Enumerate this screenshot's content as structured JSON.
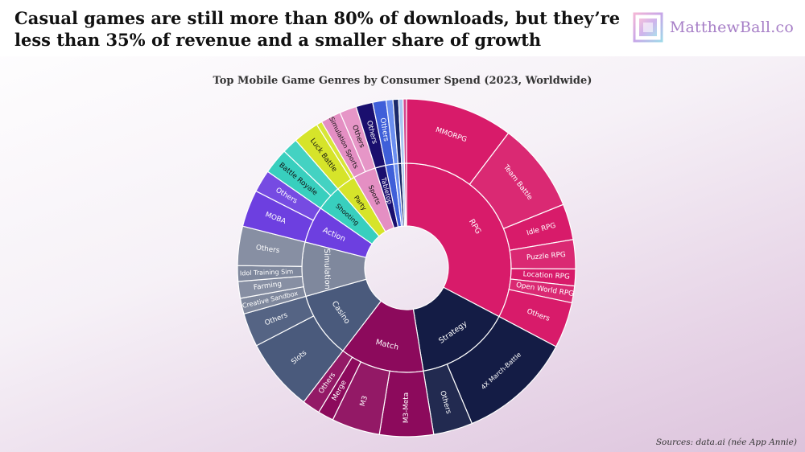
{
  "header": {
    "headline": "Casual games are still more than 80% of downloads, but they’re less than 35% of revenue and a smaller share of growth",
    "brand": "MatthewBall.co"
  },
  "footer": {
    "source": "Sources: data.ai (née App Annie)"
  },
  "chart_data": {
    "type": "sunburst",
    "title": "Top Mobile Game Genres by Consumer Spend (2023, Worldwide)",
    "unit": "approximate share of consumer spend (%)",
    "genres": [
      {
        "name": "RPG",
        "label": "RPG",
        "color": "#d81b6a",
        "children": [
          {
            "name": "MMORPG",
            "label": "MMORPG",
            "value": 9.6
          },
          {
            "name": "Team Battle",
            "label": "Team Battle",
            "value": 8.0
          },
          {
            "name": "Idle RPG",
            "label": "Idle RPG",
            "value": 3.2
          },
          {
            "name": "Puzzle RPG",
            "label": "Puzzle RPG",
            "value": 2.6
          },
          {
            "name": "Location RPG",
            "label": "Location RPG",
            "value": 1.5
          },
          {
            "name": "Open World RPG",
            "label": "Open World RPG",
            "value": 1.5
          },
          {
            "name": "Others",
            "label": "Others",
            "value": 4.1
          }
        ]
      },
      {
        "name": "Strategy",
        "label": "Strategy",
        "color": "#141c45",
        "children": [
          {
            "name": "4X March-Battle",
            "label": "4X March-Battle",
            "value": 10.2
          },
          {
            "name": "Others",
            "label": "Others",
            "value": 3.5
          }
        ]
      },
      {
        "name": "Match",
        "label": "Match",
        "color": "#8c0a5c",
        "children": [
          {
            "name": "M3-Meta",
            "label": "M3-Meta",
            "value": 4.8
          },
          {
            "name": "M3",
            "label": "M3",
            "value": 4.3
          },
          {
            "name": "Merge",
            "label": "Merge",
            "value": 1.4
          },
          {
            "name": "Others",
            "label": "Others",
            "value": 1.6
          }
        ]
      },
      {
        "name": "Casino",
        "label": "Casino",
        "color": "#4a5a7c",
        "children": [
          {
            "name": "Slots",
            "label": "Slots",
            "value": 6.5
          },
          {
            "name": "Others",
            "label": "Others",
            "value": 3.0
          }
        ]
      },
      {
        "name": "Simulation",
        "label": "Simulation",
        "color": "#7f889d",
        "children": [
          {
            "name": "Creative Sandbox",
            "label": "Creative Sandbox",
            "value": 1.4
          },
          {
            "name": "Farming",
            "label": "Farming",
            "value": 1.5
          },
          {
            "name": "Idol Training Sim",
            "label": "Idol Training Sim",
            "value": 1.4
          },
          {
            "name": "Others",
            "label": "Others",
            "value": 3.5
          }
        ]
      },
      {
        "name": "Action",
        "label": "Action",
        "color": "#6d3fe0",
        "children": [
          {
            "name": "MOBA",
            "label": "MOBA",
            "value": 3.3
          },
          {
            "name": "Others",
            "label": "Others",
            "value": 2.0
          }
        ]
      },
      {
        "name": "Shooting",
        "label": "Shooting",
        "color": "#38cfbe",
        "children": [
          {
            "name": "Battle Royale",
            "label": "Battle Royale",
            "value": 2.3
          },
          {
            "name": "Shooting other",
            "label": "",
            "value": 1.4
          }
        ]
      },
      {
        "name": "Party",
        "label": "Party",
        "color": "#d6e42a",
        "children": [
          {
            "name": "Luck Battle",
            "label": "Luck Battle",
            "value": 2.3
          },
          {
            "name": "Party other",
            "label": "",
            "value": 0.5
          }
        ]
      },
      {
        "name": "Sports",
        "label": "Sports",
        "color": "#e48fc3",
        "children": [
          {
            "name": "Simulation Sports",
            "label": "Simulation Sports",
            "value": 1.8
          },
          {
            "name": "Others",
            "label": "Others",
            "value": 1.5
          }
        ]
      },
      {
        "name": "Tabletop",
        "label": "Tabletop",
        "color": "#1a0f6e",
        "children": [
          {
            "name": "Others",
            "label": "Others",
            "value": 1.5
          }
        ]
      },
      {
        "name": "Small genre 1",
        "label": "",
        "color": "#3f5fd9",
        "children": [
          {
            "name": "Others",
            "label": "Others",
            "value": 1.2
          }
        ]
      },
      {
        "name": "Small genre 2",
        "label": "",
        "color": "#6b8ff0",
        "children": [
          {
            "name": "Small genre 2",
            "label": "",
            "value": 0.6
          }
        ]
      },
      {
        "name": "Small genre 3",
        "label": "",
        "color": "#1a2a6a",
        "children": [
          {
            "name": "Small genre 3",
            "label": "",
            "value": 0.5
          }
        ]
      },
      {
        "name": "Small genre 4",
        "label": "",
        "color": "#a9c8f2",
        "children": [
          {
            "name": "Small genre 4",
            "label": "",
            "value": 0.4
          }
        ]
      },
      {
        "name": "Small genre 5",
        "label": "",
        "color": "#d6468e",
        "children": [
          {
            "name": "Small genre 5",
            "label": "",
            "value": 0.3
          }
        ]
      }
    ]
  }
}
